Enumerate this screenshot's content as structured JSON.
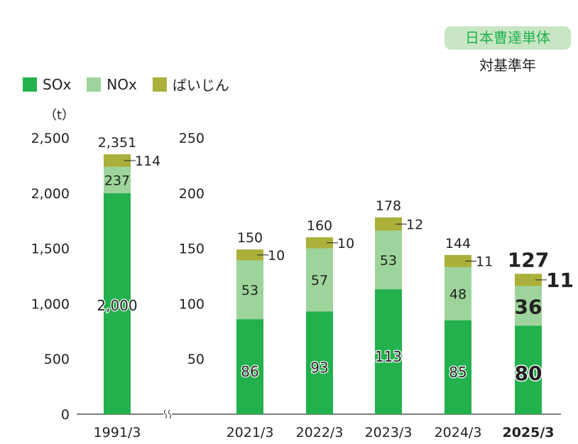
{
  "badge": "日本曹達単体",
  "subtitle": "対基準年",
  "colors": {
    "SOx": "#22b14c",
    "NOx": "#9dd49b",
    "dust": "#abb03a",
    "badge_bg": "#c8e6c4"
  },
  "chart_data": {
    "type": "bar",
    "stacked": true,
    "unit": "（t）",
    "legend": [
      "SOx",
      "NOx",
      "ばいじん"
    ],
    "legend_placement": "top-left",
    "categories": [
      "1991/3",
      "2021/3",
      "2022/3",
      "2023/3",
      "2024/3",
      "2025/3"
    ],
    "series": [
      {
        "name": "SOx",
        "values": [
          2000,
          86,
          93,
          113,
          85,
          80
        ]
      },
      {
        "name": "NOx",
        "values": [
          237,
          53,
          57,
          53,
          48,
          36
        ]
      },
      {
        "name": "ばいじん",
        "values": [
          114,
          10,
          10,
          12,
          11,
          11
        ]
      }
    ],
    "totals": [
      2351,
      150,
      160,
      178,
      144,
      127
    ],
    "left_axis": {
      "ylim": [
        0,
        2500
      ],
      "ticks": [
        "0",
        "500",
        "1,000",
        "1,500",
        "2,000",
        "2,500"
      ],
      "applies_to": [
        "1991/3"
      ]
    },
    "right_axis": {
      "ylim": [
        0,
        250
      ],
      "ticks": [
        "50",
        "100",
        "150",
        "200",
        "250"
      ],
      "applies_to": [
        "2021/3",
        "2022/3",
        "2023/3",
        "2024/3",
        "2025/3"
      ]
    },
    "axis_break": true,
    "highlight_category": "2025/3",
    "grid": false
  }
}
